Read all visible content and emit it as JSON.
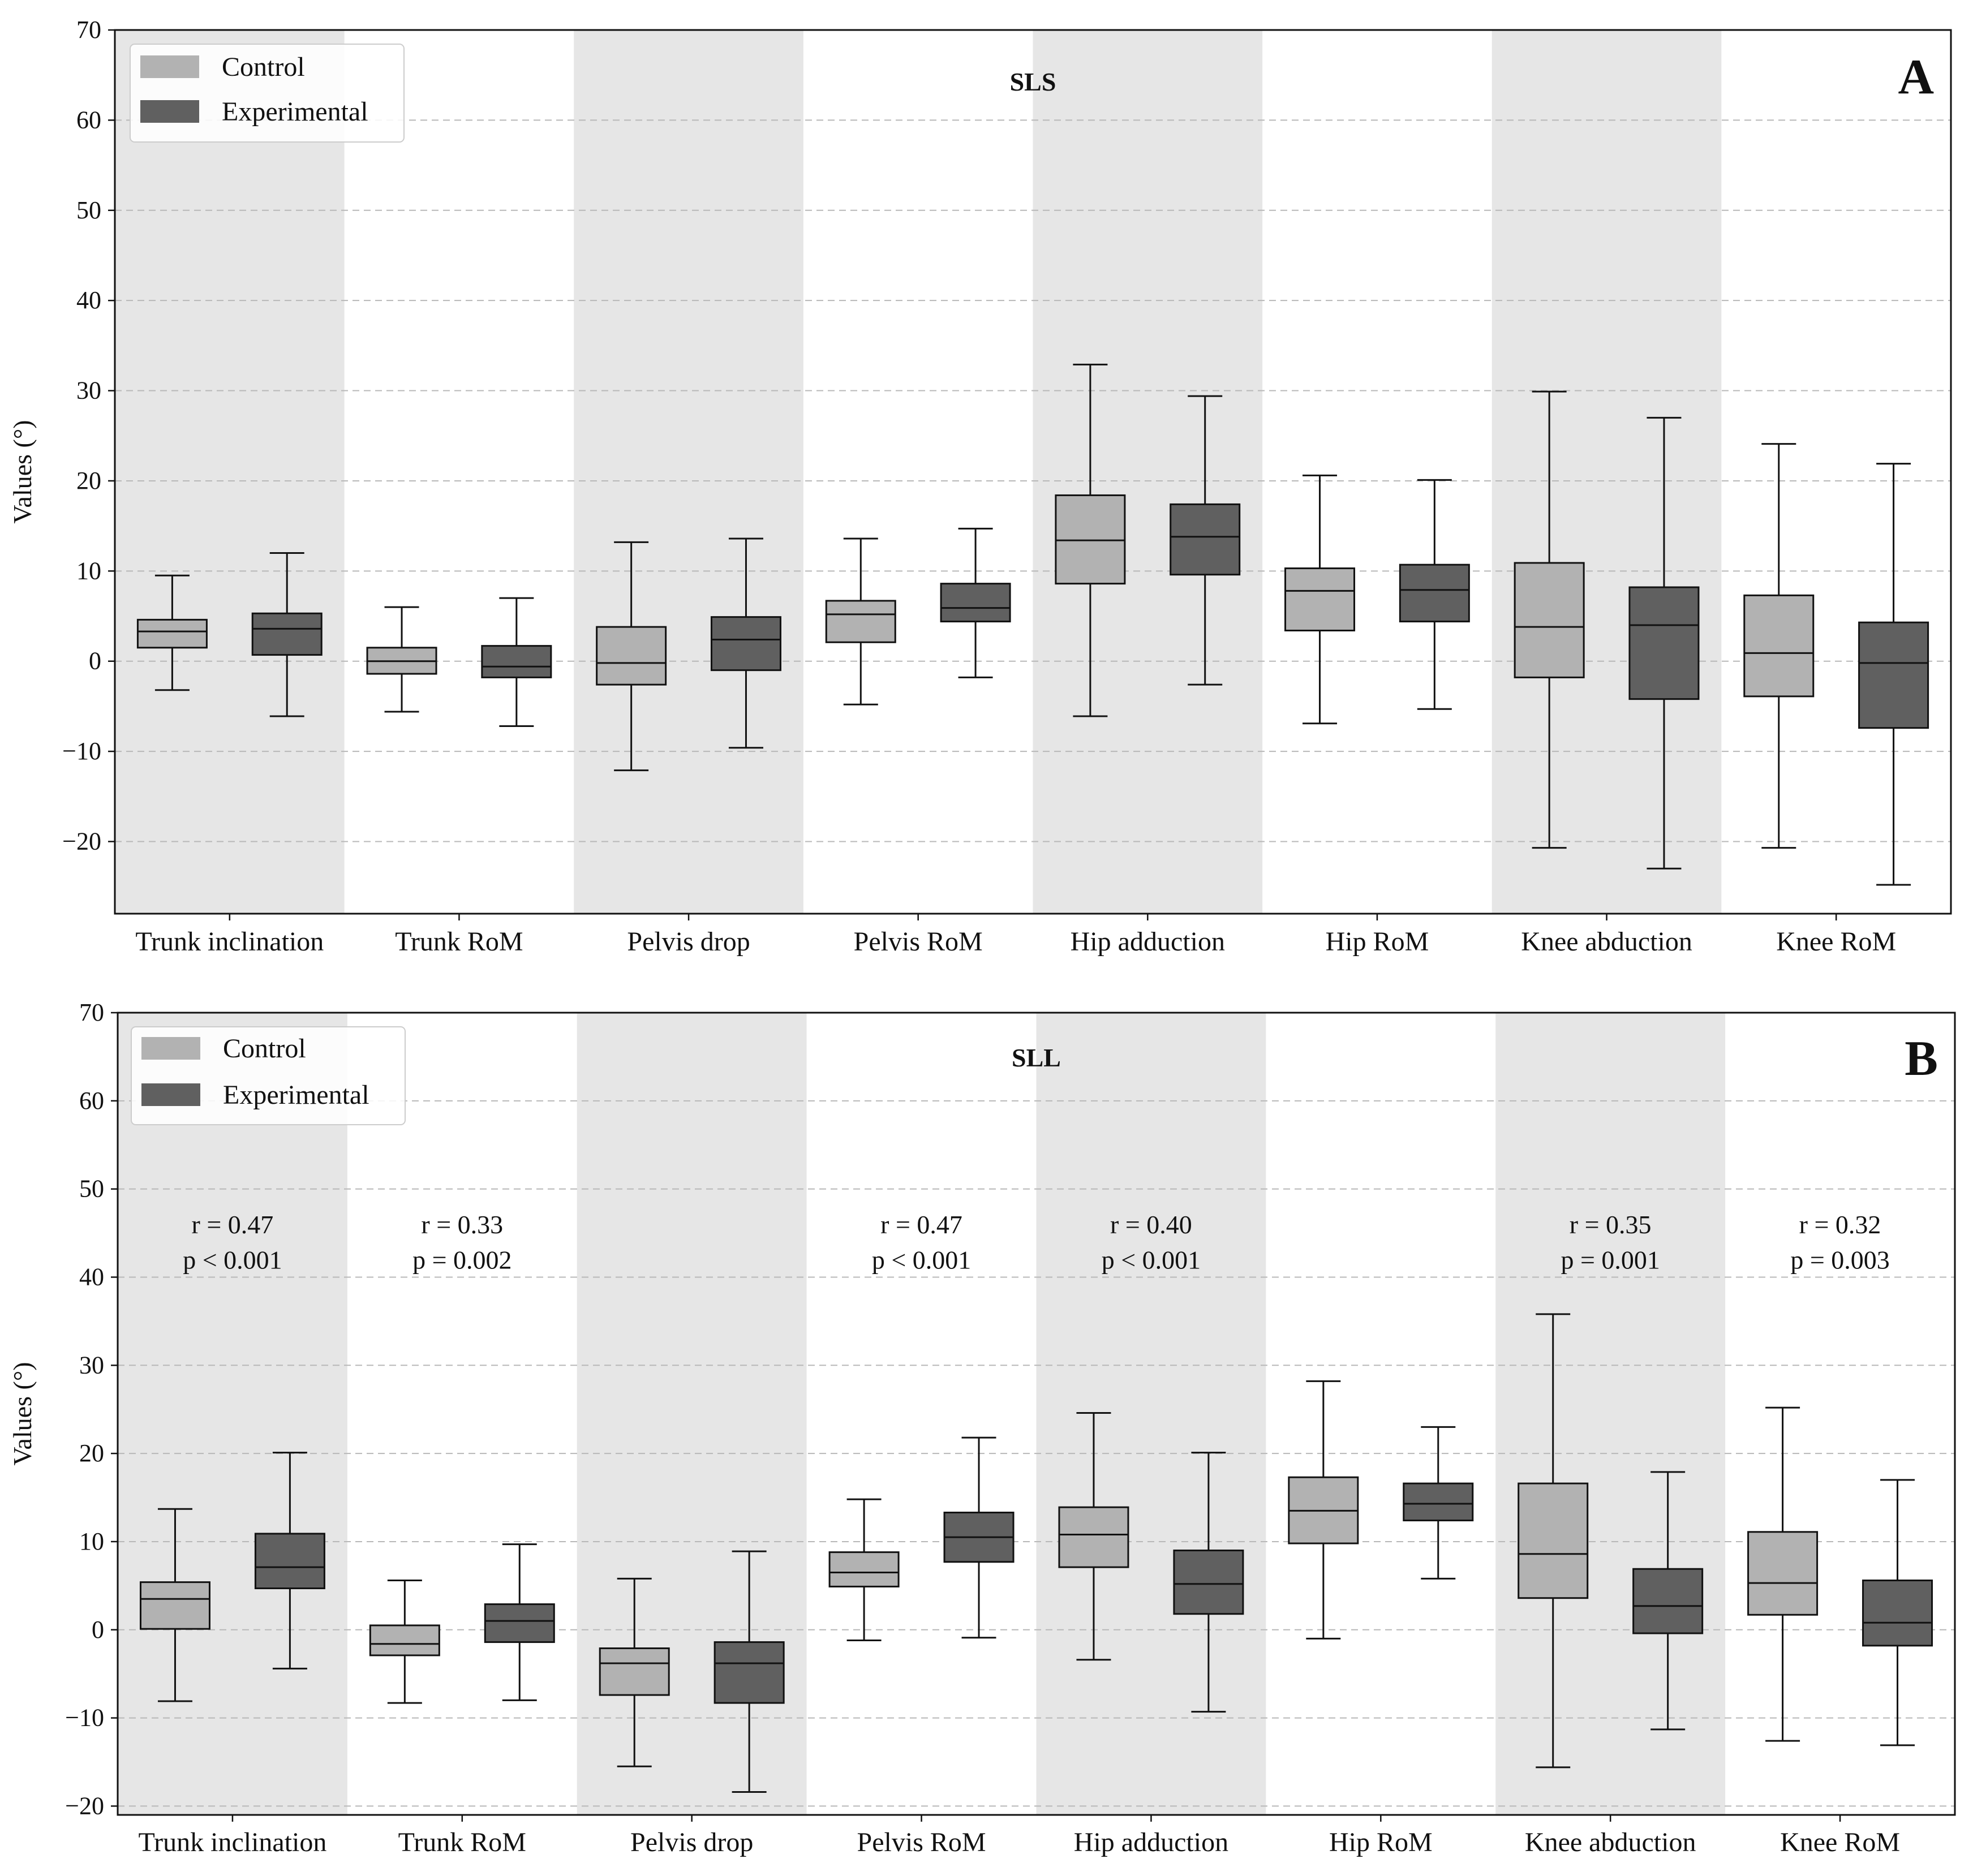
{
  "chart_data": [
    {
      "panel": "A",
      "type": "boxplot",
      "title": "SLS",
      "ylabel": "Values (°)",
      "ylim": [
        -28,
        70
      ],
      "yticks": [
        -20,
        -10,
        0,
        10,
        20,
        30,
        40,
        50,
        60,
        70
      ],
      "grid": "horizontal dashed",
      "legend": {
        "position": "top-left",
        "entries": [
          "Control",
          "Experimental"
        ]
      },
      "categories": [
        "Trunk inclination",
        "Trunk RoM",
        "Pelvis drop",
        "Pelvis RoM",
        "Hip adduction",
        "Hip RoM",
        "Knee abduction",
        "Knee RoM"
      ],
      "series": [
        {
          "name": "Control",
          "boxes": [
            {
              "whisker_low": -3.2,
              "q1": 1.5,
              "median": 3.3,
              "q3": 4.6,
              "whisker_high": 9.5
            },
            {
              "whisker_low": -5.6,
              "q1": -1.4,
              "median": 0.0,
              "q3": 1.5,
              "whisker_high": 6.0
            },
            {
              "whisker_low": -12.1,
              "q1": -2.6,
              "median": -0.2,
              "q3": 3.8,
              "whisker_high": 13.2
            },
            {
              "whisker_low": -4.8,
              "q1": 2.1,
              "median": 5.2,
              "q3": 6.7,
              "whisker_high": 13.6
            },
            {
              "whisker_low": -6.1,
              "q1": 8.6,
              "median": 13.4,
              "q3": 18.4,
              "whisker_high": 32.9
            },
            {
              "whisker_low": -6.9,
              "q1": 3.4,
              "median": 7.8,
              "q3": 10.3,
              "whisker_high": 20.6
            },
            {
              "whisker_low": -20.7,
              "q1": -1.8,
              "median": 3.8,
              "q3": 10.9,
              "whisker_high": 29.9
            },
            {
              "whisker_low": -20.7,
              "q1": -3.9,
              "median": 0.9,
              "q3": 7.3,
              "whisker_high": 24.1
            }
          ]
        },
        {
          "name": "Experimental",
          "boxes": [
            {
              "whisker_low": -6.1,
              "q1": 0.7,
              "median": 3.6,
              "q3": 5.3,
              "whisker_high": 12.0
            },
            {
              "whisker_low": -7.2,
              "q1": -1.8,
              "median": -0.6,
              "q3": 1.7,
              "whisker_high": 7.0
            },
            {
              "whisker_low": -9.6,
              "q1": -1.0,
              "median": 2.4,
              "q3": 4.9,
              "whisker_high": 13.6
            },
            {
              "whisker_low": -1.8,
              "q1": 4.4,
              "median": 5.9,
              "q3": 8.6,
              "whisker_high": 14.7
            },
            {
              "whisker_low": -2.6,
              "q1": 9.6,
              "median": 13.8,
              "q3": 17.4,
              "whisker_high": 29.4
            },
            {
              "whisker_low": -5.3,
              "q1": 4.4,
              "median": 7.9,
              "q3": 10.7,
              "whisker_high": 20.1
            },
            {
              "whisker_low": -23.0,
              "q1": -4.2,
              "median": 4.0,
              "q3": 8.2,
              "whisker_high": 27.0
            },
            {
              "whisker_low": -24.8,
              "q1": -7.4,
              "median": -0.2,
              "q3": 4.3,
              "whisker_high": 21.9
            }
          ]
        }
      ],
      "annotations": []
    },
    {
      "panel": "B",
      "type": "boxplot",
      "title": "SLL",
      "ylabel": "Values (°)",
      "ylim": [
        -21,
        70
      ],
      "yticks": [
        -20,
        -10,
        0,
        10,
        20,
        30,
        40,
        50,
        60,
        70
      ],
      "grid": "horizontal dashed",
      "legend": {
        "position": "top-left",
        "entries": [
          "Control",
          "Experimental"
        ]
      },
      "categories": [
        "Trunk inclination",
        "Trunk RoM",
        "Pelvis drop",
        "Pelvis RoM",
        "Hip adduction",
        "Hip RoM",
        "Knee abduction",
        "Knee RoM"
      ],
      "series": [
        {
          "name": "Control",
          "boxes": [
            {
              "whisker_low": -8.1,
              "q1": 0.1,
              "median": 3.5,
              "q3": 5.4,
              "whisker_high": 13.7
            },
            {
              "whisker_low": -8.3,
              "q1": -2.9,
              "median": -1.6,
              "q3": 0.5,
              "whisker_high": 5.6
            },
            {
              "whisker_low": -15.5,
              "q1": -7.4,
              "median": -3.8,
              "q3": -2.1,
              "whisker_high": 5.8
            },
            {
              "whisker_low": -1.2,
              "q1": 4.9,
              "median": 6.5,
              "q3": 8.8,
              "whisker_high": 14.8
            },
            {
              "whisker_low": -3.4,
              "q1": 7.1,
              "median": 10.8,
              "q3": 13.9,
              "whisker_high": 24.6
            },
            {
              "whisker_low": -1.0,
              "q1": 9.8,
              "median": 13.5,
              "q3": 17.3,
              "whisker_high": 28.2
            },
            {
              "whisker_low": -15.6,
              "q1": 3.6,
              "median": 8.6,
              "q3": 16.6,
              "whisker_high": 35.8
            },
            {
              "whisker_low": -12.6,
              "q1": 1.7,
              "median": 5.3,
              "q3": 11.1,
              "whisker_high": 25.2
            }
          ]
        },
        {
          "name": "Experimental",
          "boxes": [
            {
              "whisker_low": -4.4,
              "q1": 4.7,
              "median": 7.1,
              "q3": 10.9,
              "whisker_high": 20.1
            },
            {
              "whisker_low": -8.0,
              "q1": -1.4,
              "median": 1.0,
              "q3": 2.9,
              "whisker_high": 9.7
            },
            {
              "whisker_low": -18.4,
              "q1": -8.3,
              "median": -3.8,
              "q3": -1.4,
              "whisker_high": 8.9
            },
            {
              "whisker_low": -0.9,
              "q1": 7.7,
              "median": 10.5,
              "q3": 13.3,
              "whisker_high": 21.8
            },
            {
              "whisker_low": -9.3,
              "q1": 1.8,
              "median": 5.2,
              "q3": 9.0,
              "whisker_high": 20.1
            },
            {
              "whisker_low": 5.8,
              "q1": 12.4,
              "median": 14.3,
              "q3": 16.6,
              "whisker_high": 23.0
            },
            {
              "whisker_low": -11.3,
              "q1": -0.4,
              "median": 2.7,
              "q3": 6.9,
              "whisker_high": 17.9
            },
            {
              "whisker_low": -13.1,
              "q1": -1.8,
              "median": 0.8,
              "q3": 5.6,
              "whisker_high": 17.0
            }
          ]
        }
      ],
      "annotations": [
        {
          "category": "Trunk inclination",
          "r": "r = 0.47",
          "p": "p < 0.001"
        },
        {
          "category": "Trunk RoM",
          "r": "r = 0.33",
          "p": "p = 0.002"
        },
        {
          "category": "Pelvis RoM",
          "r": "r = 0.47",
          "p": "p < 0.001"
        },
        {
          "category": "Hip adduction",
          "r": "r = 0.40",
          "p": "p < 0.001"
        },
        {
          "category": "Knee abduction",
          "r": "r = 0.35",
          "p": "p = 0.001"
        },
        {
          "category": "Knee RoM",
          "r": "r = 0.32",
          "p": "p = 0.003"
        }
      ]
    }
  ],
  "colors": {
    "control": "#b2b2b2",
    "experimental": "#606060",
    "band": "#e6e6e6",
    "grid": "#b8b8b8",
    "axis": "#111111"
  }
}
